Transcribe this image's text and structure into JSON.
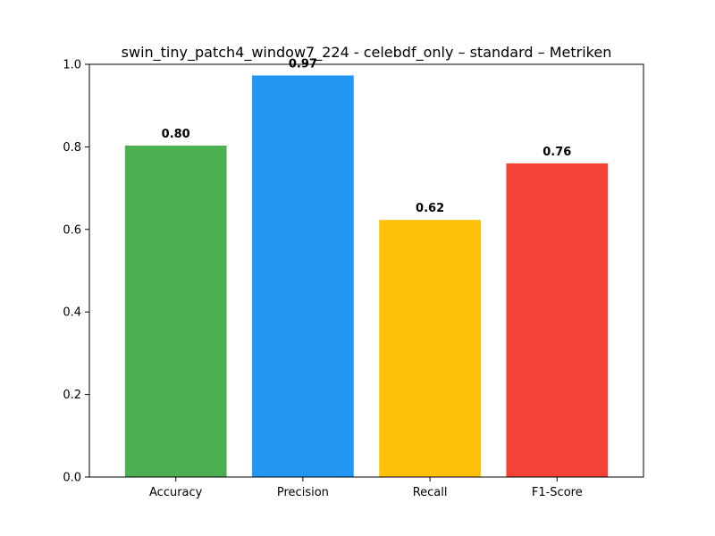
{
  "chart_data": {
    "type": "bar",
    "title": "swin_tiny_patch4_window7_224 - celebdf_only – standard – Metriken",
    "xlabel": "",
    "ylabel": "",
    "categories": [
      "Accuracy",
      "Precision",
      "Recall",
      "F1-Score"
    ],
    "values": [
      0.803,
      0.973,
      0.623,
      0.76
    ],
    "data_labels": [
      "0.80",
      "0.97",
      "0.62",
      "0.76"
    ],
    "colors": [
      "#4caf50",
      "#2196f3",
      "#ffc107",
      "#f44336"
    ],
    "ylim": [
      0,
      1.0
    ],
    "yticks": [
      0.0,
      0.2,
      0.4,
      0.6,
      0.8,
      1.0
    ],
    "ytick_labels": [
      "0.0",
      "0.2",
      "0.4",
      "0.6",
      "0.8",
      "1.0"
    ],
    "grid": false,
    "legend": false
  }
}
